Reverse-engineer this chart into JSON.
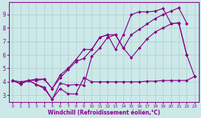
{
  "background_color": "#cce8e8",
  "grid_color": "#aacccc",
  "line_color": "#880088",
  "marker": "D",
  "markersize": 2.0,
  "linewidth": 0.9,
  "xlabel": "Windchill (Refroidissement éolien,°C)",
  "xlim": [
    -0.5,
    23.5
  ],
  "ylim": [
    2.5,
    9.9
  ],
  "yticks": [
    3,
    4,
    5,
    6,
    7,
    8,
    9
  ],
  "xticks": [
    0,
    1,
    2,
    3,
    4,
    5,
    6,
    7,
    8,
    9,
    10,
    11,
    12,
    13,
    14,
    15,
    16,
    17,
    18,
    19,
    20,
    21,
    22,
    23
  ],
  "series": [
    {
      "x": [
        0,
        1,
        2,
        3,
        4,
        5,
        6,
        7,
        8,
        9,
        10,
        11,
        12,
        13,
        14,
        15,
        16,
        17,
        18,
        19,
        20,
        21,
        22,
        23
      ],
      "y": [
        4.1,
        3.85,
        4.1,
        3.8,
        3.6,
        2.7,
        3.5,
        3.1,
        3.1,
        4.3,
        4.0,
        4.0,
        4.0,
        4.0,
        4.0,
        4.0,
        4.0,
        4.05,
        4.05,
        4.1,
        4.1,
        4.1,
        4.1,
        4.4
      ]
    },
    {
      "x": [
        0,
        1,
        2,
        3,
        4,
        5,
        6,
        7,
        8,
        9,
        10,
        11,
        12,
        13,
        14,
        15,
        16,
        17,
        18,
        19,
        20,
        21,
        22,
        23
      ],
      "y": [
        4.1,
        3.85,
        4.1,
        3.8,
        3.5,
        2.7,
        3.9,
        3.75,
        3.8,
        3.75,
        5.9,
        6.5,
        7.3,
        7.5,
        6.5,
        5.8,
        6.5,
        7.2,
        7.7,
        8.0,
        8.3,
        8.4,
        6.0,
        4.4
      ]
    },
    {
      "x": [
        0,
        1,
        2,
        3,
        4,
        5,
        6,
        7,
        8,
        9,
        10,
        11,
        12,
        13,
        14,
        15,
        16,
        17,
        18,
        19,
        20,
        21,
        22
      ],
      "y": [
        4.1,
        4.0,
        4.1,
        4.2,
        4.2,
        3.5,
        4.3,
        4.9,
        5.5,
        5.75,
        6.4,
        7.3,
        7.5,
        7.5,
        6.5,
        7.5,
        7.9,
        8.3,
        8.7,
        9.0,
        9.25,
        9.5,
        8.35
      ]
    },
    {
      "x": [
        0,
        1,
        2,
        3,
        4,
        5,
        6,
        7,
        8,
        9,
        10,
        11,
        12,
        13,
        14,
        15,
        16,
        17,
        18,
        19,
        20,
        21,
        22
      ],
      "y": [
        4.1,
        3.85,
        4.1,
        4.1,
        4.2,
        3.5,
        4.5,
        5.0,
        5.65,
        6.4,
        6.4,
        7.3,
        7.5,
        6.4,
        7.5,
        9.0,
        9.2,
        9.2,
        9.25,
        9.45,
        8.35,
        8.35,
        6.0
      ]
    }
  ]
}
